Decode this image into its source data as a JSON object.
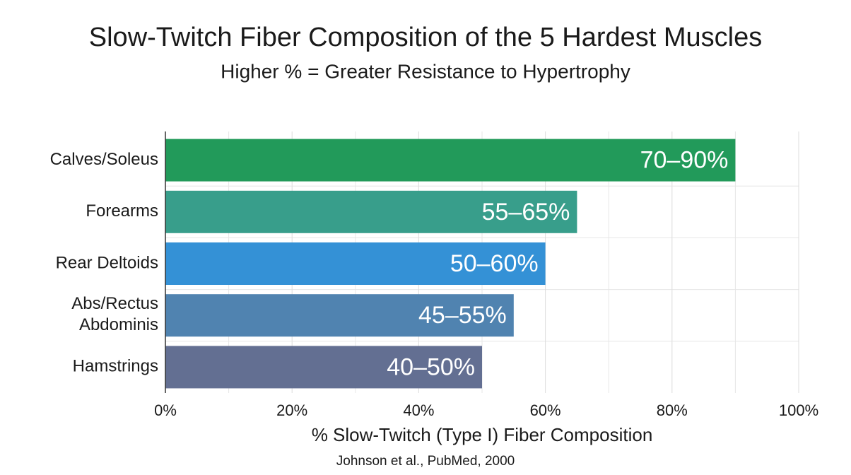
{
  "chart_data": {
    "type": "hbar",
    "title": "Slow-Twitch Fiber Composition of the 5 Hardest Muscles",
    "subtitle": "Higher % = Greater Resistance to Hypertrophy",
    "x_label": "% Slow-Twitch (Type I) Fiber Composition",
    "source": "Johnson et al., PubMed, 2000",
    "categories": [
      "Calves/Soleus",
      "Forearms",
      "Rear Deltoids",
      "Abs/Rectus\nAbdominis",
      "Hamstrings"
    ],
    "values": [
      90,
      65,
      60,
      55,
      50
    ],
    "value_labels": [
      "70–90%",
      "55–65%",
      "50–60%",
      "45–55%",
      "40–50%"
    ],
    "colors": [
      "#229a5a",
      "#389e8b",
      "#3491d6",
      "#5083b0",
      "#636f92"
    ],
    "xlim": [
      0,
      100
    ],
    "xticks": [
      {
        "value": 0,
        "label": "0%"
      },
      {
        "value": 20,
        "label": "20%"
      },
      {
        "value": 40,
        "label": "40%"
      },
      {
        "value": 60,
        "label": "60%"
      },
      {
        "value": 80,
        "label": "80%"
      },
      {
        "value": 100,
        "label": "100%"
      }
    ],
    "minor_xticks": [
      10,
      30,
      50,
      70,
      90
    ],
    "grid": true
  }
}
